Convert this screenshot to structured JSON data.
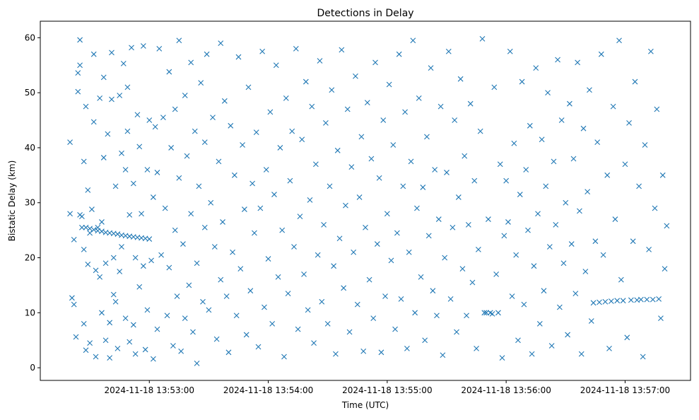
{
  "chart_data": {
    "type": "scatter",
    "title": "Detections in Delay",
    "xlabel": "Time (UTC)",
    "ylabel": "Bistatic Delay (km)",
    "x_units": "seconds after 2024-11-18 13:52:00 UTC",
    "xlim": [
      5,
      333
    ],
    "ylim": [
      -2.3,
      63
    ],
    "grid": false,
    "marker": "x",
    "color": "#1f77b4",
    "xticks": [
      {
        "value": 60,
        "label": "2024-11-18 13:53:00"
      },
      {
        "value": 120,
        "label": "2024-11-18 13:54:00"
      },
      {
        "value": 180,
        "label": "2024-11-18 13:55:00"
      },
      {
        "value": 240,
        "label": "2024-11-18 13:56:00"
      },
      {
        "value": 300,
        "label": "2024-11-18 13:57:00"
      }
    ],
    "yticks": [
      0,
      10,
      20,
      30,
      40,
      50,
      60
    ],
    "points": [
      [
        20,
        41
      ],
      [
        21,
        12.7
      ],
      [
        22,
        11.5
      ],
      [
        22,
        23.3
      ],
      [
        23,
        5.6
      ],
      [
        24,
        53.6
      ],
      [
        24,
        50.2
      ],
      [
        25,
        55
      ],
      [
        25,
        59.6
      ],
      [
        25,
        27.8
      ],
      [
        26,
        27.5
      ],
      [
        26,
        25.5
      ],
      [
        27,
        8
      ],
      [
        27,
        37.5
      ],
      [
        27,
        21.5
      ],
      [
        28,
        3.2
      ],
      [
        28,
        47.5
      ],
      [
        29,
        18.8
      ],
      [
        29,
        32.3
      ],
      [
        30,
        4.5
      ],
      [
        30,
        24.5
      ],
      [
        31,
        28.8
      ],
      [
        32,
        57
      ],
      [
        32,
        44.7
      ],
      [
        33,
        2
      ],
      [
        33,
        17.7
      ],
      [
        34,
        25.5
      ],
      [
        35,
        49
      ],
      [
        35,
        16.5
      ],
      [
        36,
        26.5
      ],
      [
        36,
        10
      ],
      [
        37,
        52.8
      ],
      [
        37,
        38.2
      ],
      [
        38,
        19
      ],
      [
        38,
        5
      ],
      [
        39,
        42.5
      ],
      [
        40,
        8.2
      ],
      [
        40,
        1.8
      ],
      [
        41,
        57.3
      ],
      [
        41,
        48.8
      ],
      [
        42,
        20
      ],
      [
        42,
        13.3
      ],
      [
        43,
        33
      ],
      [
        43,
        12
      ],
      [
        44,
        3.5
      ],
      [
        45,
        49.5
      ],
      [
        45,
        17.5
      ],
      [
        46,
        39
      ],
      [
        46,
        22
      ],
      [
        47,
        55.3
      ],
      [
        48,
        36
      ],
      [
        48,
        9
      ],
      [
        49,
        51
      ],
      [
        49,
        43
      ],
      [
        50,
        27.8
      ],
      [
        50,
        4.7
      ],
      [
        51,
        58.2
      ],
      [
        52,
        33.5
      ],
      [
        52,
        7.8
      ],
      [
        53,
        20
      ],
      [
        53,
        2.5
      ],
      [
        54,
        46
      ],
      [
        55,
        40.2
      ],
      [
        55,
        14.7
      ],
      [
        56,
        28
      ],
      [
        57,
        18.5
      ],
      [
        57,
        58.5
      ],
      [
        58,
        3.3
      ],
      [
        59,
        36
      ],
      [
        59,
        10.5
      ],
      [
        60,
        45
      ],
      [
        61,
        19.5
      ],
      [
        62,
        1.6
      ],
      [
        62,
        31
      ],
      [
        63,
        43.8
      ],
      [
        64,
        7
      ],
      [
        64,
        35.5
      ],
      [
        65,
        58
      ],
      [
        66,
        20.5
      ],
      [
        67,
        45.5
      ],
      [
        68,
        29
      ],
      [
        69,
        9.5
      ],
      [
        70,
        53.8
      ],
      [
        70,
        18.2
      ],
      [
        71,
        40
      ],
      [
        72,
        4
      ],
      [
        73,
        47
      ],
      [
        73,
        25
      ],
      [
        74,
        13
      ],
      [
        75,
        59.5
      ],
      [
        75,
        34.5
      ],
      [
        76,
        3
      ],
      [
        77,
        22.5
      ],
      [
        78,
        49.5
      ],
      [
        78,
        9
      ],
      [
        79,
        38.5
      ],
      [
        80,
        15
      ],
      [
        81,
        55.5
      ],
      [
        81,
        28
      ],
      [
        82,
        6.5
      ],
      [
        83,
        43
      ],
      [
        84,
        19
      ],
      [
        84,
        0.8
      ],
      [
        85,
        33
      ],
      [
        86,
        51.8
      ],
      [
        87,
        12
      ],
      [
        88,
        25.5
      ],
      [
        88,
        41
      ],
      [
        89,
        57
      ],
      [
        90,
        10.5
      ],
      [
        91,
        30
      ],
      [
        92,
        45.5
      ],
      [
        93,
        22
      ],
      [
        94,
        5.2
      ],
      [
        95,
        37.5
      ],
      [
        96,
        16
      ],
      [
        96,
        59
      ],
      [
        97,
        26.5
      ],
      [
        98,
        48.5
      ],
      [
        99,
        13
      ],
      [
        100,
        2.8
      ],
      [
        101,
        44
      ],
      [
        102,
        21
      ],
      [
        103,
        35
      ],
      [
        104,
        9.5
      ],
      [
        105,
        56.5
      ],
      [
        106,
        18
      ],
      [
        107,
        40.5
      ],
      [
        108,
        28.8
      ],
      [
        109,
        6
      ],
      [
        110,
        51
      ],
      [
        111,
        14
      ],
      [
        112,
        33.5
      ],
      [
        113,
        24.5
      ],
      [
        114,
        42.8
      ],
      [
        115,
        3.8
      ],
      [
        116,
        29
      ],
      [
        117,
        57.5
      ],
      [
        118,
        11
      ],
      [
        119,
        36
      ],
      [
        120,
        19.8
      ],
      [
        121,
        46.5
      ],
      [
        122,
        8
      ],
      [
        123,
        31.5
      ],
      [
        124,
        55
      ],
      [
        125,
        16.5
      ],
      [
        126,
        40
      ],
      [
        127,
        25
      ],
      [
        128,
        2
      ],
      [
        129,
        49
      ],
      [
        130,
        13.5
      ],
      [
        131,
        34
      ],
      [
        132,
        43
      ],
      [
        133,
        22
      ],
      [
        134,
        58
      ],
      [
        135,
        7
      ],
      [
        136,
        27.5
      ],
      [
        137,
        41.5
      ],
      [
        138,
        17
      ],
      [
        139,
        52
      ],
      [
        140,
        10.5
      ],
      [
        141,
        30.5
      ],
      [
        142,
        47.5
      ],
      [
        143,
        4.5
      ],
      [
        144,
        37
      ],
      [
        145,
        20.5
      ],
      [
        146,
        55.8
      ],
      [
        147,
        12
      ],
      [
        148,
        26
      ],
      [
        149,
        44.5
      ],
      [
        150,
        8
      ],
      [
        151,
        33
      ],
      [
        152,
        50.5
      ],
      [
        153,
        18.5
      ],
      [
        154,
        2.5
      ],
      [
        155,
        39.5
      ],
      [
        156,
        23.5
      ],
      [
        157,
        57.8
      ],
      [
        158,
        14.5
      ],
      [
        159,
        29.5
      ],
      [
        160,
        47
      ],
      [
        161,
        6.5
      ],
      [
        162,
        36.5
      ],
      [
        163,
        21
      ],
      [
        164,
        53
      ],
      [
        165,
        11.5
      ],
      [
        166,
        31
      ],
      [
        167,
        42
      ],
      [
        168,
        3
      ],
      [
        169,
        25.5
      ],
      [
        170,
        48.2
      ],
      [
        171,
        16
      ],
      [
        172,
        38
      ],
      [
        173,
        9
      ],
      [
        174,
        55.5
      ],
      [
        175,
        22.5
      ],
      [
        176,
        34.5
      ],
      [
        177,
        2.8
      ],
      [
        178,
        45
      ],
      [
        179,
        13
      ],
      [
        180,
        28
      ],
      [
        181,
        51.5
      ],
      [
        182,
        19.5
      ],
      [
        183,
        40.5
      ],
      [
        184,
        7
      ],
      [
        185,
        24.5
      ],
      [
        186,
        57
      ],
      [
        187,
        12.5
      ],
      [
        188,
        33
      ],
      [
        189,
        46.5
      ],
      [
        190,
        3.5
      ],
      [
        191,
        21
      ],
      [
        192,
        37.5
      ],
      [
        193,
        59.5
      ],
      [
        194,
        10
      ],
      [
        195,
        29
      ],
      [
        196,
        49
      ],
      [
        197,
        16.5
      ],
      [
        198,
        32.8
      ],
      [
        199,
        5
      ],
      [
        200,
        42
      ],
      [
        201,
        24
      ],
      [
        202,
        54.5
      ],
      [
        203,
        14
      ],
      [
        204,
        36
      ],
      [
        205,
        9.5
      ],
      [
        206,
        27
      ],
      [
        207,
        47.5
      ],
      [
        208,
        2.3
      ],
      [
        209,
        20
      ],
      [
        210,
        35.5
      ],
      [
        211,
        57.5
      ],
      [
        212,
        12.5
      ],
      [
        213,
        25.5
      ],
      [
        214,
        45
      ],
      [
        215,
        6.5
      ],
      [
        216,
        31
      ],
      [
        217,
        52.5
      ],
      [
        218,
        18
      ],
      [
        219,
        38.5
      ],
      [
        220,
        9.5
      ],
      [
        221,
        26
      ],
      [
        222,
        48
      ],
      [
        223,
        15.5
      ],
      [
        224,
        34
      ],
      [
        225,
        3.5
      ],
      [
        226,
        21.5
      ],
      [
        227,
        43
      ],
      [
        228,
        59.8
      ],
      [
        229,
        10
      ],
      [
        230,
        10
      ],
      [
        231,
        27
      ],
      [
        232,
        10
      ],
      [
        233,
        9.8
      ],
      [
        234,
        51
      ],
      [
        235,
        17
      ],
      [
        236,
        10
      ],
      [
        237,
        37
      ],
      [
        238,
        1.8
      ],
      [
        239,
        24
      ],
      [
        240,
        34
      ],
      [
        241,
        26.5
      ],
      [
        242,
        57.5
      ],
      [
        243,
        13
      ],
      [
        244,
        40.8
      ],
      [
        245,
        20.5
      ],
      [
        246,
        5
      ],
      [
        247,
        31.5
      ],
      [
        248,
        52
      ],
      [
        249,
        11.5
      ],
      [
        250,
        36
      ],
      [
        251,
        25
      ],
      [
        252,
        44
      ],
      [
        253,
        2.5
      ],
      [
        254,
        18.5
      ],
      [
        255,
        54.5
      ],
      [
        256,
        28
      ],
      [
        257,
        8
      ],
      [
        258,
        41.5
      ],
      [
        259,
        14
      ],
      [
        260,
        33
      ],
      [
        261,
        50
      ],
      [
        262,
        22
      ],
      [
        263,
        4
      ],
      [
        264,
        37.5
      ],
      [
        265,
        26
      ],
      [
        266,
        56
      ],
      [
        267,
        11
      ],
      [
        268,
        45
      ],
      [
        269,
        19
      ],
      [
        270,
        30
      ],
      [
        271,
        6
      ],
      [
        272,
        48
      ],
      [
        273,
        22.5
      ],
      [
        274,
        38
      ],
      [
        275,
        13.5
      ],
      [
        276,
        55.5
      ],
      [
        277,
        28.5
      ],
      [
        278,
        2.5
      ],
      [
        279,
        43.5
      ],
      [
        280,
        17.5
      ],
      [
        281,
        32
      ],
      [
        282,
        50.5
      ],
      [
        283,
        8.5
      ],
      [
        284,
        11.8
      ],
      [
        285,
        23
      ],
      [
        286,
        41
      ],
      [
        287,
        11.9
      ],
      [
        288,
        57
      ],
      [
        289,
        20.5
      ],
      [
        290,
        12
      ],
      [
        291,
        35
      ],
      [
        292,
        3.5
      ],
      [
        293,
        12.1
      ],
      [
        294,
        47.5
      ],
      [
        295,
        27
      ],
      [
        296,
        12.2
      ],
      [
        297,
        59.5
      ],
      [
        298,
        16
      ],
      [
        299,
        12.2
      ],
      [
        300,
        37
      ],
      [
        301,
        5.5
      ],
      [
        302,
        44.5
      ],
      [
        303,
        12.3
      ],
      [
        304,
        23
      ],
      [
        305,
        52
      ],
      [
        306,
        12.3
      ],
      [
        307,
        33
      ],
      [
        308,
        12.4
      ],
      [
        309,
        2
      ],
      [
        310,
        40.5
      ],
      [
        311,
        12.4
      ],
      [
        312,
        21.5
      ],
      [
        313,
        57.5
      ],
      [
        314,
        12.4
      ],
      [
        315,
        29
      ],
      [
        316,
        47
      ],
      [
        317,
        12.5
      ],
      [
        318,
        9
      ],
      [
        319,
        35
      ],
      [
        320,
        18
      ],
      [
        321,
        25.8
      ],
      [
        20,
        28
      ],
      [
        56,
        23.6
      ],
      [
        58,
        23.5
      ],
      [
        60,
        23.4
      ]
    ],
    "trail": {
      "points": [
        [
          28,
          25.5
        ],
        [
          30,
          25.3
        ],
        [
          32,
          25.1
        ],
        [
          34,
          24.9
        ],
        [
          36,
          24.8
        ],
        [
          38,
          24.6
        ],
        [
          40,
          24.5
        ],
        [
          42,
          24.4
        ],
        [
          44,
          24.3
        ],
        [
          46,
          24.1
        ],
        [
          48,
          24
        ],
        [
          50,
          23.9
        ],
        [
          52,
          23.8
        ],
        [
          54,
          23.7
        ]
      ]
    }
  }
}
